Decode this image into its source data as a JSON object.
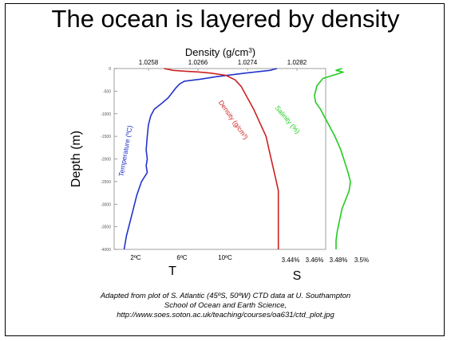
{
  "title": "The ocean is layered by density",
  "caption": {
    "line1": "Adapted from plot of S. Atlantic (45ºS, 50ºW) CTD data at U. Southampton",
    "line2": "School of Ocean and Earth Science,",
    "line3": "http://www.soes.soton.ac.uk/teaching/courses/oa631/ctd_plot.jpg"
  },
  "chart_data": {
    "type": "line",
    "ylabel": "Depth (m)",
    "ylim": [
      0,
      4000
    ],
    "y_inverted": true,
    "y_ticks": [
      "0",
      "-500",
      "-1000",
      "-1500",
      "-2000",
      "-2500",
      "-3000",
      "-3500",
      "-4000"
    ],
    "top_axis": {
      "label_text": "Density (g/cm",
      "label_sup": "3",
      "label_close": ")",
      "ticks": [
        "1.0258",
        "1.0266",
        "1.0274",
        "1.0282"
      ]
    },
    "bottom_axis": {
      "temperature_ticks": [
        "2ºC",
        "6ºC",
        "10ºC"
      ],
      "salinity_ticks": [
        "3.44%",
        "3.46%",
        "3.48%",
        "3.5%"
      ],
      "temperature_letter": "T",
      "salinity_letter": "S"
    },
    "series": [
      {
        "name": "Temperature (ºC)",
        "color": "#2233cc",
        "unit": "ºC",
        "points": [
          [
            14.2,
            0
          ],
          [
            13.6,
            40
          ],
          [
            11.5,
            100
          ],
          [
            9.0,
            180
          ],
          [
            7.5,
            240
          ],
          [
            6.2,
            280
          ],
          [
            5.8,
            340
          ],
          [
            5.5,
            420
          ],
          [
            5.2,
            520
          ],
          [
            4.8,
            650
          ],
          [
            4.2,
            780
          ],
          [
            3.6,
            900
          ],
          [
            3.3,
            1050
          ],
          [
            3.1,
            1250
          ],
          [
            3.0,
            1500
          ],
          [
            2.9,
            1800
          ],
          [
            3.0,
            2000
          ],
          [
            2.9,
            2150
          ],
          [
            3.0,
            2300
          ],
          [
            2.5,
            2500
          ],
          [
            2.1,
            2800
          ],
          [
            1.8,
            3100
          ],
          [
            1.5,
            3400
          ],
          [
            1.2,
            3700
          ],
          [
            1.0,
            4000
          ]
        ]
      },
      {
        "name": "Density (g/cm³)",
        "color": "#cc2222",
        "unit": "g/cm3",
        "points": [
          [
            1.02605,
            0
          ],
          [
            1.0262,
            40
          ],
          [
            1.0264,
            60
          ],
          [
            1.0266,
            75
          ],
          [
            1.0268,
            100
          ],
          [
            1.02705,
            150
          ],
          [
            1.0272,
            250
          ],
          [
            1.0273,
            400
          ],
          [
            1.0274,
            650
          ],
          [
            1.0275,
            900
          ],
          [
            1.0276,
            1200
          ],
          [
            1.0277,
            1500
          ],
          [
            1.02775,
            1800
          ],
          [
            1.0278,
            2100
          ],
          [
            1.02785,
            2400
          ],
          [
            1.0279,
            2700
          ],
          [
            1.0279,
            3000
          ],
          [
            1.0279,
            3300
          ],
          [
            1.0279,
            3600
          ],
          [
            1.0279,
            4000
          ]
        ]
      },
      {
        "name": "Salinity (%)",
        "color": "#22cc22",
        "unit": "%",
        "points": [
          [
            3.483,
            0
          ],
          [
            3.478,
            40
          ],
          [
            3.484,
            80
          ],
          [
            3.478,
            130
          ],
          [
            3.467,
            220
          ],
          [
            3.462,
            380
          ],
          [
            3.46,
            600
          ],
          [
            3.461,
            750
          ],
          [
            3.465,
            900
          ],
          [
            3.468,
            1050
          ],
          [
            3.472,
            1250
          ],
          [
            3.477,
            1500
          ],
          [
            3.482,
            1800
          ],
          [
            3.485,
            2050
          ],
          [
            3.488,
            2300
          ],
          [
            3.49,
            2500
          ],
          [
            3.489,
            2700
          ],
          [
            3.486,
            2900
          ],
          [
            3.483,
            3100
          ],
          [
            3.481,
            3350
          ],
          [
            3.479,
            3600
          ],
          [
            3.478,
            3800
          ],
          [
            3.478,
            4000
          ]
        ]
      }
    ]
  }
}
